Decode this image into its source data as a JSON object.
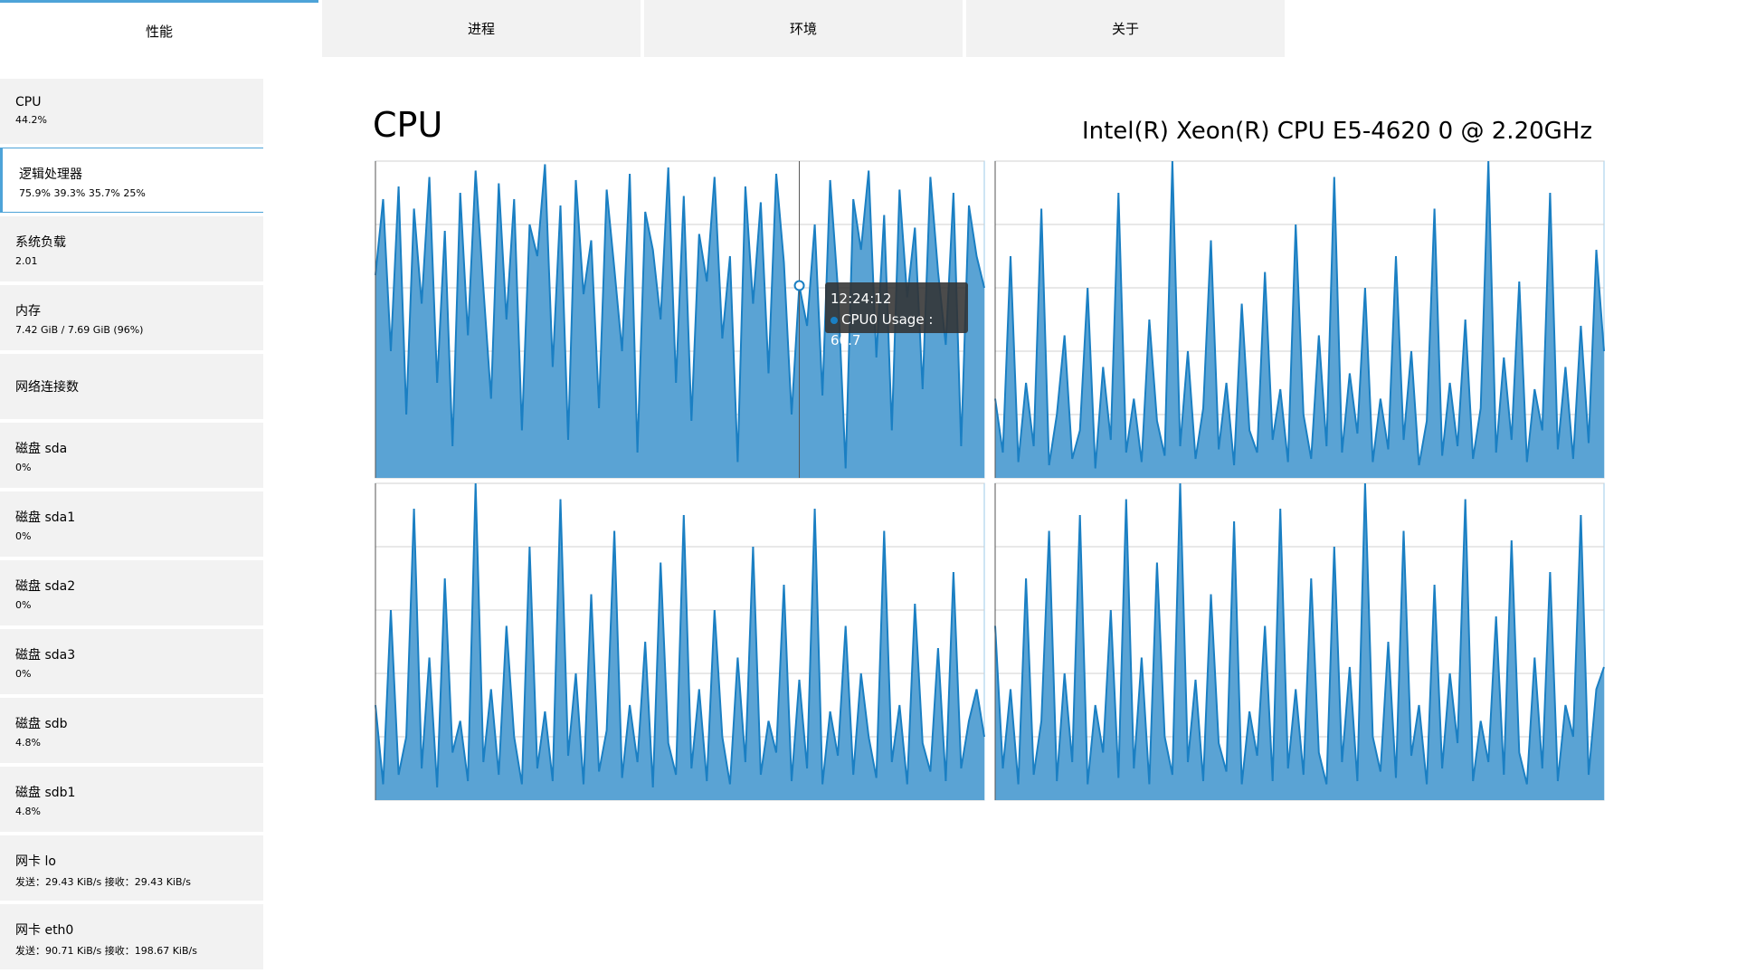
{
  "tabs": [
    "性能",
    "进程",
    "环境",
    "关于"
  ],
  "sidebar": [
    {
      "name": "CPU",
      "detail": "44.2%"
    },
    {
      "name": "逻辑处理器",
      "detail": "75.9% 39.3% 35.7% 25%"
    },
    {
      "name": "系统负载",
      "detail": "2.01"
    },
    {
      "name": "内存",
      "detail": "7.42 GiB / 7.69 GiB (96%)"
    },
    {
      "name": "网络连接数"
    },
    {
      "name": "磁盘 sda",
      "detail": "0%"
    },
    {
      "name": "磁盘 sda1",
      "detail": "0%"
    },
    {
      "name": "磁盘 sda2",
      "detail": "0%"
    },
    {
      "name": "磁盘 sda3",
      "detail": "0%"
    },
    {
      "name": "磁盘 sdb",
      "detail": "4.8%"
    },
    {
      "name": "磁盘 sdb1",
      "detail": "4.8%"
    },
    {
      "name": "网卡 lo",
      "detail": "发送：29.43 KiB/s 接收：29.43 KiB/s"
    },
    {
      "name": "网卡 eth0",
      "detail": "发送：90.71 KiB/s 接收：198.67 KiB/s"
    }
  ],
  "header": {
    "title": "CPU",
    "model": "Intel(R) Xeon(R) CPU E5-4620 0 @ 2.20GHz"
  },
  "tooltip": {
    "time": "12:24:12",
    "text": "CPU0 Usage : 60.7"
  },
  "chart_data": [
    {
      "type": "area",
      "color": "#1a7fc3",
      "fill": "#5aa3d4",
      "ylim": [
        0,
        100
      ],
      "yticks": [
        0,
        20,
        40,
        60,
        80,
        100
      ],
      "grid": true,
      "values": [
        64,
        88,
        40,
        92,
        20,
        85,
        55,
        95,
        30,
        78,
        10,
        90,
        45,
        97,
        60,
        25,
        93,
        50,
        88,
        15,
        80,
        70,
        99,
        35,
        86,
        12,
        94,
        58,
        75,
        22,
        91,
        66,
        40,
        96,
        8,
        84,
        72,
        50,
        98,
        30,
        89,
        18,
        77,
        62,
        95,
        44,
        70,
        5,
        92,
        55,
        87,
        33,
        96,
        68,
        20,
        60.7,
        48,
        80,
        26,
        94,
        60,
        3,
        88,
        72,
        97,
        38,
        83,
        15,
        91,
        57,
        79,
        28,
        95,
        65,
        42,
        90,
        10,
        86,
        70,
        60
      ]
    },
    {
      "type": "area",
      "color": "#1a7fc3",
      "fill": "#5aa3d4",
      "ylim": [
        0,
        100
      ],
      "yticks": [
        0,
        20,
        40,
        60,
        80,
        100
      ],
      "grid": true,
      "values": [
        25,
        8,
        70,
        5,
        30,
        10,
        85,
        4,
        20,
        45,
        6,
        15,
        60,
        3,
        35,
        12,
        90,
        8,
        25,
        5,
        50,
        18,
        7,
        100,
        10,
        40,
        6,
        22,
        75,
        9,
        30,
        4,
        55,
        15,
        8,
        65,
        12,
        28,
        5,
        80,
        20,
        6,
        45,
        10,
        95,
        8,
        33,
        14,
        60,
        5,
        25,
        9,
        70,
        12,
        40,
        4,
        18,
        85,
        7,
        30,
        10,
        50,
        6,
        22,
        100,
        8,
        38,
        12,
        62,
        5,
        28,
        15,
        90,
        9,
        35,
        6,
        48,
        11,
        72,
        40
      ]
    },
    {
      "type": "area",
      "color": "#1a7fc3",
      "fill": "#5aa3d4",
      "ylim": [
        0,
        100
      ],
      "yticks": [
        0,
        20,
        40,
        60,
        80,
        100
      ],
      "grid": true,
      "values": [
        30,
        5,
        60,
        8,
        20,
        92,
        10,
        45,
        4,
        70,
        15,
        25,
        6,
        100,
        12,
        35,
        8,
        55,
        20,
        5,
        80,
        10,
        28,
        6,
        95,
        14,
        40,
        5,
        65,
        9,
        22,
        85,
        7,
        30,
        12,
        50,
        4,
        75,
        18,
        8,
        90,
        10,
        35,
        6,
        60,
        20,
        5,
        45,
        12,
        80,
        8,
        25,
        15,
        68,
        6,
        38,
        10,
        92,
        5,
        28,
        14,
        55,
        8,
        40,
        20,
        7,
        85,
        12,
        30,
        5,
        62,
        18,
        9,
        48,
        6,
        72,
        10,
        25,
        35,
        20
      ]
    },
    {
      "type": "area",
      "color": "#1a7fc3",
      "fill": "#5aa3d4",
      "ylim": [
        0,
        100
      ],
      "yticks": [
        0,
        20,
        40,
        60,
        80,
        100
      ],
      "grid": true,
      "values": [
        55,
        10,
        35,
        5,
        70,
        8,
        25,
        85,
        6,
        40,
        12,
        90,
        5,
        30,
        15,
        60,
        7,
        95,
        10,
        45,
        5,
        75,
        20,
        8,
        100,
        12,
        38,
        6,
        65,
        18,
        9,
        88,
        5,
        28,
        14,
        55,
        6,
        92,
        10,
        35,
        8,
        70,
        15,
        5,
        80,
        12,
        42,
        6,
        100,
        20,
        9,
        50,
        7,
        85,
        14,
        30,
        5,
        68,
        10,
        40,
        18,
        95,
        6,
        25,
        12,
        58,
        8,
        82,
        15,
        5,
        45,
        10,
        72,
        6,
        30,
        20,
        90,
        8,
        35,
        42
      ]
    }
  ]
}
